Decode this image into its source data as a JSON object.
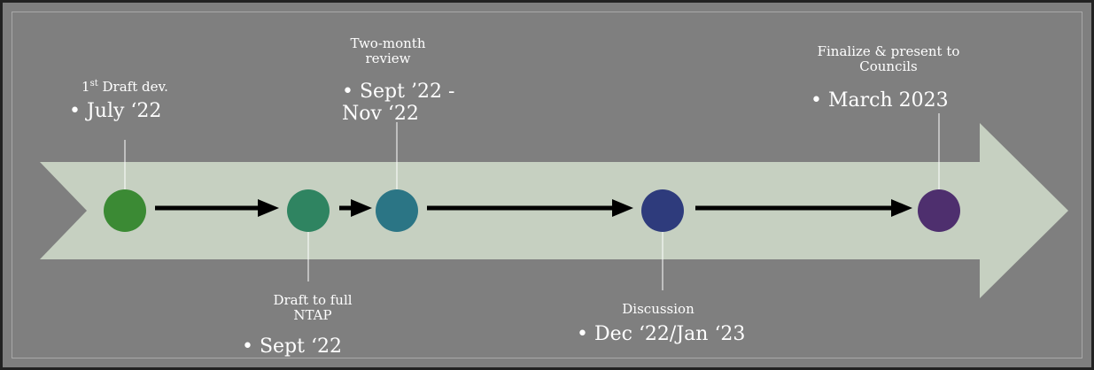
{
  "milestones": [
    {
      "label": {
        "base": "1",
        "sup": "st",
        "rest": " Draft dev."
      },
      "date": "• July ‘22",
      "color": "#3b8a34"
    },
    {
      "label": "Draft to full NTAP",
      "date": "• Sept ‘22",
      "color": "#2f8461"
    },
    {
      "label": "Two-month review",
      "date": "• Sept ’22 - Nov ‘22",
      "color": "#2b7585"
    },
    {
      "label": "Discussion",
      "date": "• Dec ‘22/Jan ‘23",
      "color": "#2e3b7c"
    },
    {
      "label": "Finalize & present to Councils",
      "date": "• March 2023",
      "color": "#4e2f6e"
    }
  ]
}
